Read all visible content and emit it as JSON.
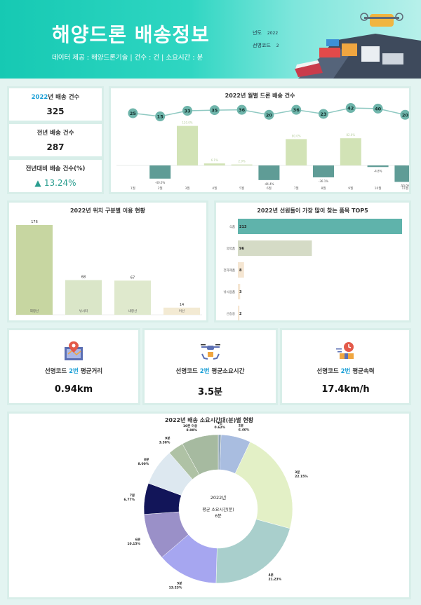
{
  "header": {
    "title": "해양드론 배송정보",
    "subtitle": "데이터 제공 : 해양드론기술 | 건수 : 건 | 소요시간 : 분",
    "year_label": "년도",
    "year_value": "2022",
    "code_label": "선명코드",
    "code_value": "2"
  },
  "kpi": {
    "delivery_label_year": "2022",
    "delivery_label_rest": "년 배송 건수",
    "delivery_value": "325",
    "prev_label": "전년 배송 건수",
    "prev_value": "287",
    "change_label": "전년대비 배송 건수(%)",
    "change_arrow": "▲",
    "change_value": "13.24%"
  },
  "stats": [
    {
      "pre": "선명코드 ",
      "hl": "2번",
      "post": " 평균거리",
      "value": "0.94km",
      "icon": "map-pin-icon"
    },
    {
      "pre": "선명코드 ",
      "hl": "2번",
      "post": " 평균소요시간",
      "value": "3.5분",
      "icon": "drone-icon"
    },
    {
      "pre": "선명코드 ",
      "hl": "2번",
      "post": " 평균속력",
      "value": "17.4km/h",
      "icon": "fast-delivery-icon"
    }
  ],
  "colors": {
    "teal": "#5fb3ab",
    "green": "#d2e3b6",
    "accent": "#1a9fd6",
    "header": "#1ec9b4"
  },
  "chart_data": [
    {
      "type": "bar",
      "title_year": "2022",
      "title_rest": "년 월별 드론 배송 건수",
      "categories": [
        "1월",
        "2월",
        "3월",
        "4월",
        "5월",
        "6월",
        "7월",
        "8월",
        "9월",
        "10월",
        "11월"
      ],
      "counts": [
        25,
        15,
        33,
        35,
        36,
        20,
        36,
        23,
        42,
        40,
        20
      ],
      "change_pct": [
        0,
        -40.0,
        120.0,
        6.1,
        2.9,
        -44.4,
        80.0,
        -36.1,
        82.6,
        -4.8,
        -50.0
      ],
      "change_labels": [
        "",
        "-40.0%",
        "120.0%",
        "6.1%",
        "2.9%",
        "-44.4%",
        "80.0%",
        "-36.1%",
        "82.6%",
        "-4.8%",
        "-50.0%"
      ]
    },
    {
      "type": "bar",
      "title_year": "2022",
      "title_rest": "년 위치 구분별 이용 현황",
      "categories": [
        "외항선",
        "낚시터",
        "내항선",
        "어선"
      ],
      "values": [
        176,
        68,
        67,
        14
      ],
      "value_labels": [
        "176",
        "68",
        "67",
        "14"
      ],
      "colors": [
        "#c7d6a1",
        "#dae6c8",
        "#dfe9cd",
        "#f3ead3"
      ]
    },
    {
      "type": "bar",
      "title_year": "2022",
      "title_rest": "년 선원들이 가장 많이 찾는 품목 TOP5",
      "categories": [
        "식품",
        "의약품",
        "전자제품",
        "낚시용품",
        "선승용"
      ],
      "values": [
        213,
        96,
        8,
        3,
        2
      ],
      "value_labels": [
        "213",
        "96",
        "8",
        "3",
        "2"
      ],
      "colors": [
        "#5fb3ab",
        "#d5dbc6",
        "#f5e6d2",
        "#f5e6d2",
        "#f5e6d2"
      ]
    },
    {
      "type": "pie",
      "title_year": "2022",
      "title_rest": "년 배송 소요시간대(분)별 현황",
      "center_line1": "2022년",
      "center_line2": "평균 소요시간(분)",
      "center_line3": "6분",
      "slices": [
        {
          "name": "1분",
          "pct": 0.62,
          "label": "0.62%",
          "color": "#8fa5b5"
        },
        {
          "name": "2분",
          "pct": 6.46,
          "label": "6.46%",
          "color": "#a9bde0"
        },
        {
          "name": "3분",
          "pct": 22.15,
          "label": "22.15%",
          "color": "#e3f0c6"
        },
        {
          "name": "4분",
          "pct": 21.23,
          "label": "21.23%",
          "color": "#a9cfcc"
        },
        {
          "name": "5분",
          "pct": 13.23,
          "label": "13.23%",
          "color": "#a6a6f0"
        },
        {
          "name": "6분",
          "pct": 10.15,
          "label": "10.15%",
          "color": "#9a90c8"
        },
        {
          "name": "7분",
          "pct": 6.77,
          "label": "6.77%",
          "color": "#121559"
        },
        {
          "name": "8분",
          "pct": 8.0,
          "label": "8.00%",
          "color": "#dde8f0"
        },
        {
          "name": "9분",
          "pct": 3.38,
          "label": "3.38%",
          "color": "#afc2a5"
        },
        {
          "name": "10분 이상",
          "pct": 8.0,
          "label": "8.00%",
          "color": "#a6baa0"
        }
      ]
    }
  ]
}
